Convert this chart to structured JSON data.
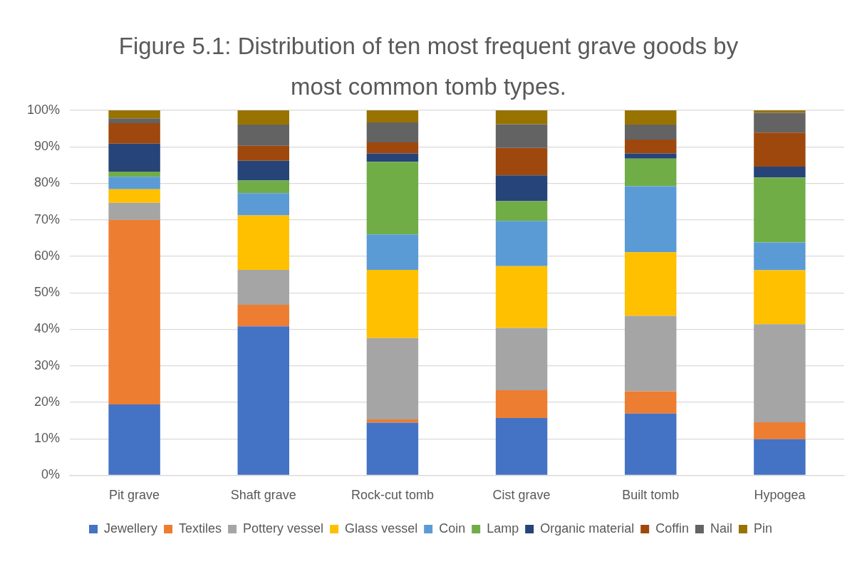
{
  "chart_data": {
    "type": "bar",
    "title": "Figure 5.1: Distribution of ten most frequent grave goods by most common tomb types.",
    "categories": [
      "Pit grave",
      "Shaft grave",
      "Rock-cut tomb",
      "Cist grave",
      "Built tomb",
      "Hypogea"
    ],
    "stacked": true,
    "series": [
      {
        "name": "Jewellery",
        "color": "#4472c4",
        "values": [
          19.4,
          40.8,
          14.4,
          15.7,
          16.9,
          9.9
        ]
      },
      {
        "name": "Textiles",
        "color": "#ed7d31",
        "values": [
          50.6,
          5.9,
          0.9,
          7.6,
          6.1,
          4.6
        ]
      },
      {
        "name": "Pottery vessel",
        "color": "#a5a5a5",
        "values": [
          4.7,
          9.6,
          22.3,
          17.1,
          20.7,
          26.9
        ]
      },
      {
        "name": "Glass vessel",
        "color": "#ffc000",
        "values": [
          3.7,
          14.9,
          18.7,
          16.9,
          17.4,
          14.8
        ]
      },
      {
        "name": "Coin",
        "color": "#5b9bd5",
        "values": [
          3.4,
          6.1,
          9.7,
          12.4,
          18.1,
          7.6
        ]
      },
      {
        "name": "Lamp",
        "color": "#70ad47",
        "values": [
          1.4,
          3.5,
          19.9,
          5.4,
          7.6,
          17.8
        ]
      },
      {
        "name": "Organic material",
        "color": "#264478",
        "values": [
          7.7,
          5.4,
          2.3,
          7.1,
          1.4,
          3.0
        ]
      },
      {
        "name": "Coffin",
        "color": "#9e480e",
        "values": [
          5.6,
          4.1,
          3.0,
          7.5,
          3.8,
          9.3
        ]
      },
      {
        "name": "Nail",
        "color": "#636363",
        "values": [
          1.3,
          5.8,
          5.5,
          6.5,
          4.1,
          5.4
        ]
      },
      {
        "name": "Pin",
        "color": "#997300",
        "values": [
          2.2,
          3.9,
          3.3,
          3.8,
          3.9,
          0.7
        ]
      }
    ],
    "ylim": [
      0,
      100
    ],
    "yticks": [
      {
        "value": 0,
        "label": "0%"
      },
      {
        "value": 10,
        "label": "10%"
      },
      {
        "value": 20,
        "label": "20%"
      },
      {
        "value": 30,
        "label": "30%"
      },
      {
        "value": 40,
        "label": "40%"
      },
      {
        "value": 50,
        "label": "50%"
      },
      {
        "value": 60,
        "label": "60%"
      },
      {
        "value": 70,
        "label": "70%"
      },
      {
        "value": 80,
        "label": "80%"
      },
      {
        "value": 90,
        "label": "90%"
      },
      {
        "value": 100,
        "label": "100%"
      }
    ],
    "grid": "y",
    "legend": "bottom"
  }
}
